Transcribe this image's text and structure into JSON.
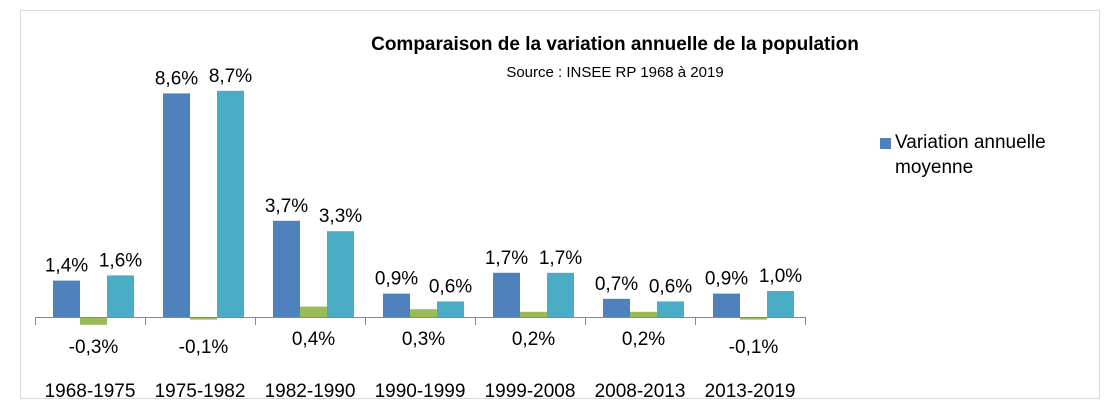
{
  "chart_data": {
    "type": "bar",
    "title": "Comparaison de la variation annuelle de la population",
    "subtitle": "Source : INSEE RP 1968 à 2019",
    "categories": [
      "1968-1975",
      "1975-1982",
      "1982-1990",
      "1990-1999",
      "1999-2008",
      "2008-2013",
      "2013-2019"
    ],
    "series": [
      {
        "name": "Variation annuelle moyenne",
        "color": "#4f81bd",
        "values": [
          1.4,
          8.6,
          3.7,
          0.9,
          1.7,
          0.7,
          0.9
        ],
        "value_labels": [
          "1,4%",
          "8,6%",
          "3,7%",
          "0,9%",
          "1,7%",
          "0,7%",
          "0,9%"
        ]
      },
      {
        "color": "#9bbb59",
        "values": [
          -0.3,
          -0.1,
          0.4,
          0.3,
          0.2,
          0.2,
          -0.1
        ],
        "value_labels": [
          "-0,3%",
          "-0,1%",
          "0,4%",
          "0,3%",
          "0,2%",
          "0,2%",
          "-0,1%"
        ]
      },
      {
        "color": "#4bacc6",
        "values": [
          1.6,
          8.7,
          3.3,
          0.6,
          1.7,
          0.6,
          1.0
        ],
        "value_labels": [
          "1,6%",
          "8,7%",
          "3,3%",
          "0,6%",
          "1,7%",
          "0,6%",
          "1,0%"
        ]
      }
    ],
    "legend": "right"
  }
}
